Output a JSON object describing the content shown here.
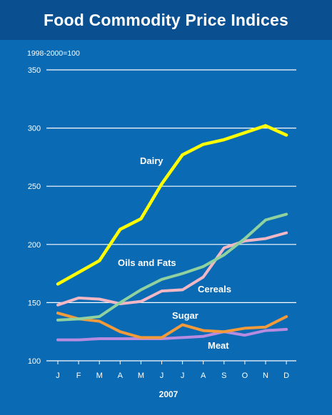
{
  "chart_data": {
    "type": "line",
    "title": "Food Commodity Price Indices",
    "subtitle": "1998-2000=100",
    "xlabel": "2007",
    "ylabel": "",
    "categories": [
      "J",
      "F",
      "M",
      "A",
      "M",
      "J",
      "J",
      "A",
      "S",
      "O",
      "N",
      "D"
    ],
    "ylim": [
      100,
      350
    ],
    "yticks": [
      "100",
      "150",
      "200",
      "250",
      "300",
      "350"
    ],
    "grid": true,
    "series": [
      {
        "name": "Dairy",
        "color": "#ffff00",
        "values": [
          166,
          176,
          186,
          213,
          222,
          252,
          277,
          286,
          290,
          296,
          302,
          294
        ]
      },
      {
        "name": "Oils and Fats",
        "color": "#8fd29f",
        "values": [
          135,
          136,
          138,
          150,
          161,
          170,
          175,
          181,
          191,
          205,
          221,
          226
        ]
      },
      {
        "name": "Cereals",
        "color": "#f2b7c4",
        "values": [
          148,
          154,
          153,
          149,
          151,
          160,
          161,
          172,
          197,
          203,
          205,
          210
        ]
      },
      {
        "name": "Sugar",
        "color": "#f39b3a",
        "values": [
          141,
          136,
          134,
          125,
          120,
          120,
          131,
          126,
          125,
          128,
          129,
          138
        ]
      },
      {
        "name": "Meat",
        "color": "#b68be0",
        "values": [
          118,
          118,
          119,
          119,
          119,
          119,
          120,
          121,
          125,
          122,
          126,
          127
        ]
      }
    ]
  }
}
